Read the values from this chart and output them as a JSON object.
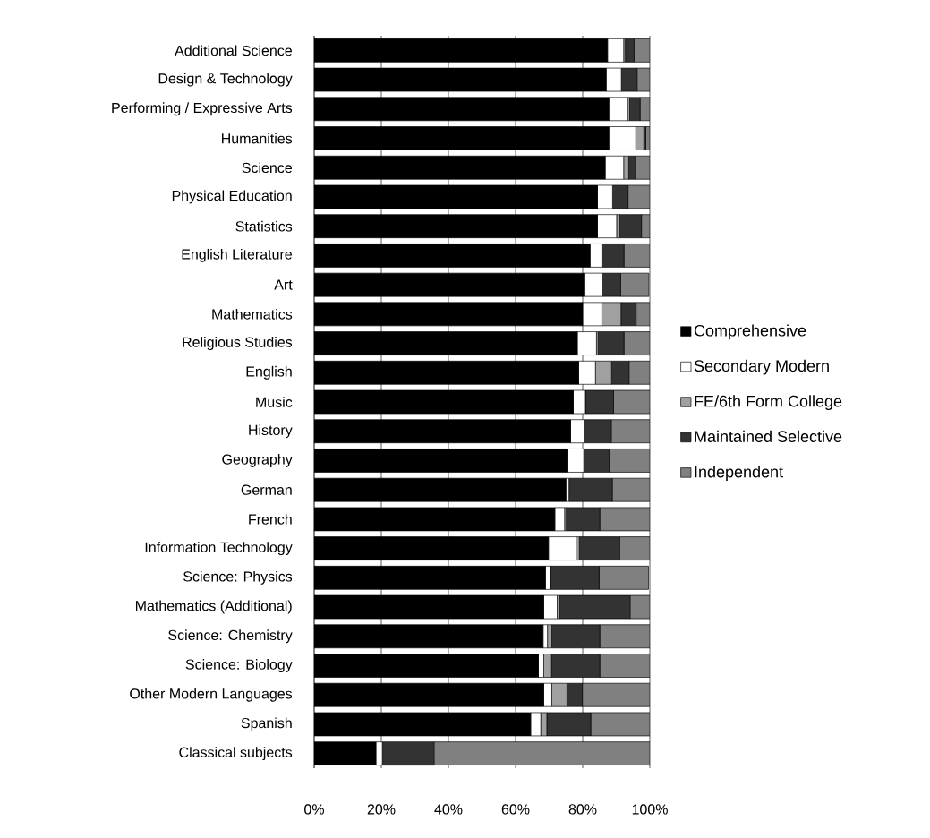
{
  "chart_data": {
    "type": "bar",
    "orientation": "horizontal",
    "stacked": true,
    "grid": "x",
    "legend": "right",
    "categories": [
      "Additional Science",
      "Design & Technology",
      "Performing / Expressive Arts",
      "Humanities",
      "Science",
      "Physical Education",
      "Statistics",
      "English Literature",
      "Art",
      "Mathematics",
      "Religious Studies",
      "English",
      "Music",
      "History",
      "Geography",
      "German",
      "French",
      "Information Technology",
      "Science: Physics",
      "Mathematics (Additional)",
      "Science: Chemistry",
      "Science: Biology",
      "Other Modern Languages",
      "Spanish",
      "Classical subjects"
    ],
    "xlim": [
      0,
      100
    ],
    "xticks": [
      {
        "value": 0,
        "label": "0%"
      },
      {
        "value": 20,
        "label": "20%"
      },
      {
        "value": 40,
        "label": "40%"
      },
      {
        "value": 60,
        "label": "60%"
      },
      {
        "value": 80,
        "label": "80%"
      },
      {
        "value": 100,
        "label": "100%"
      }
    ],
    "series": [
      {
        "name": "Comprehensive",
        "color": "#000000",
        "values": [
          87.4,
          87.0,
          87.8,
          87.8,
          86.7,
          84.4,
          84.4,
          82.2,
          80.6,
          80.0,
          78.4,
          78.8,
          77.2,
          76.4,
          75.6,
          75.0,
          71.7,
          69.8,
          68.9,
          68.4,
          68.2,
          66.8,
          68.4,
          64.5,
          18.4
        ]
      },
      {
        "name": "Secondary Modern",
        "color": "#ffffff",
        "values": [
          4.8,
          4.5,
          5.5,
          8.0,
          5.5,
          4.5,
          5.7,
          3.5,
          5.4,
          5.7,
          5.7,
          5.0,
          3.6,
          4.0,
          4.7,
          0.9,
          2.9,
          8.2,
          1.5,
          4.0,
          1.3,
          1.6,
          2.4,
          3.0,
          1.9
        ]
      },
      {
        "name": "FE/6th Form College",
        "color": "#a0a0a0",
        "values": [
          0.5,
          0,
          0.7,
          2.4,
          1.5,
          0,
          0.9,
          0,
          null,
          5.7,
          0.5,
          4.8,
          0,
          0,
          0,
          0,
          0.5,
          1.0,
          null,
          0.7,
          1.3,
          2.3,
          4.5,
          1.8,
          0
        ]
      },
      {
        "name": "Maintained Selective",
        "color": "#333333",
        "values": [
          2.6,
          4.7,
          3.1,
          0.6,
          2.1,
          4.6,
          6.5,
          6.6,
          5.3,
          4.5,
          7.7,
          5.2,
          8.4,
          8.1,
          7.6,
          12.9,
          10.0,
          12.0,
          14.5,
          21.0,
          14.3,
          14.4,
          4.6,
          13.1,
          15.4
        ]
      },
      {
        "name": "Independent",
        "color": "#808080",
        "values": [
          4.7,
          3.8,
          2.9,
          1.2,
          4.2,
          6.5,
          2.5,
          7.7,
          8.4,
          4.1,
          7.7,
          6.2,
          10.8,
          11.5,
          12.1,
          11.2,
          14.9,
          9.0,
          14.7,
          5.9,
          14.9,
          14.9,
          20.1,
          17.6,
          64.3
        ]
      }
    ]
  }
}
